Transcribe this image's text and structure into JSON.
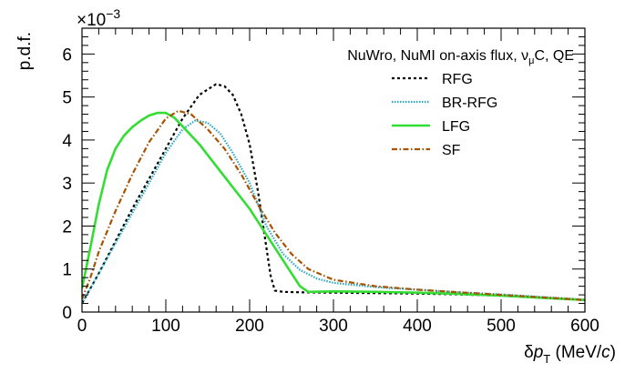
{
  "chart_data": {
    "type": "line",
    "title": "",
    "annotation": {
      "text": "NuWro, NuMI on-axis flux, ",
      "nu": "ν",
      "sub": "μ",
      "tail": "C, QE"
    },
    "xlabel": {
      "delta": "δ",
      "p": "p",
      "sub": "T",
      "unit_pre": " (MeV/",
      "unit_c": "c",
      "unit_post": ")"
    },
    "ylabel": "p.d.f.",
    "y_multiplier": {
      "base": "×10",
      "exp": "−3"
    },
    "xlim": [
      0,
      600
    ],
    "ylim": [
      0,
      6.6
    ],
    "x_ticks": [
      0,
      100,
      200,
      300,
      400,
      500,
      600
    ],
    "y_ticks": [
      0,
      1,
      2,
      3,
      4,
      5,
      6
    ],
    "grid": false,
    "legend_position": "top-right",
    "series": [
      {
        "name": "RFG",
        "color": "#000000",
        "dash": "3 3",
        "points": [
          [
            0,
            0.2
          ],
          [
            20,
            0.9
          ],
          [
            40,
            1.65
          ],
          [
            60,
            2.4
          ],
          [
            80,
            3.1
          ],
          [
            100,
            3.8
          ],
          [
            120,
            4.5
          ],
          [
            140,
            5.05
          ],
          [
            160,
            5.3
          ],
          [
            170,
            5.25
          ],
          [
            180,
            5.05
          ],
          [
            190,
            4.6
          ],
          [
            200,
            3.9
          ],
          [
            210,
            2.8
          ],
          [
            220,
            1.5
          ],
          [
            225,
            0.85
          ],
          [
            230,
            0.5
          ],
          [
            240,
            0.47
          ],
          [
            260,
            0.46
          ],
          [
            300,
            0.45
          ],
          [
            350,
            0.44
          ],
          [
            400,
            0.43
          ],
          [
            450,
            0.41
          ],
          [
            500,
            0.38
          ],
          [
            550,
            0.33
          ],
          [
            600,
            0.28
          ]
        ]
      },
      {
        "name": "BR-RFG",
        "color": "#2aa8c2",
        "dash": "1.5 1.5",
        "points": [
          [
            0,
            0.2
          ],
          [
            20,
            0.9
          ],
          [
            40,
            1.6
          ],
          [
            60,
            2.3
          ],
          [
            80,
            3.0
          ],
          [
            100,
            3.7
          ],
          [
            120,
            4.25
          ],
          [
            135,
            4.45
          ],
          [
            150,
            4.4
          ],
          [
            165,
            4.15
          ],
          [
            180,
            3.7
          ],
          [
            200,
            3.0
          ],
          [
            220,
            2.0
          ],
          [
            240,
            1.35
          ],
          [
            260,
            0.98
          ],
          [
            280,
            0.78
          ],
          [
            300,
            0.68
          ],
          [
            350,
            0.58
          ],
          [
            400,
            0.52
          ],
          [
            450,
            0.46
          ],
          [
            500,
            0.41
          ],
          [
            550,
            0.35
          ],
          [
            600,
            0.29
          ]
        ]
      },
      {
        "name": "LFG",
        "color": "#33dd33",
        "dash": "",
        "points": [
          [
            0,
            0.55
          ],
          [
            10,
            1.5
          ],
          [
            20,
            2.5
          ],
          [
            30,
            3.3
          ],
          [
            40,
            3.8
          ],
          [
            50,
            4.1
          ],
          [
            60,
            4.3
          ],
          [
            70,
            4.45
          ],
          [
            80,
            4.57
          ],
          [
            90,
            4.63
          ],
          [
            100,
            4.63
          ],
          [
            110,
            4.52
          ],
          [
            120,
            4.32
          ],
          [
            140,
            3.9
          ],
          [
            160,
            3.4
          ],
          [
            180,
            2.9
          ],
          [
            200,
            2.4
          ],
          [
            220,
            1.8
          ],
          [
            240,
            1.2
          ],
          [
            260,
            0.6
          ],
          [
            270,
            0.47
          ],
          [
            300,
            0.48
          ],
          [
            350,
            0.47
          ],
          [
            400,
            0.45
          ],
          [
            450,
            0.42
          ],
          [
            500,
            0.38
          ],
          [
            550,
            0.33
          ],
          [
            600,
            0.28
          ]
        ]
      },
      {
        "name": "SF",
        "color": "#a85200",
        "dash": "6 2.5 1.5 2.5",
        "points": [
          [
            0,
            0.3
          ],
          [
            10,
            0.8
          ],
          [
            20,
            1.4
          ],
          [
            40,
            2.35
          ],
          [
            60,
            3.2
          ],
          [
            80,
            3.95
          ],
          [
            100,
            4.5
          ],
          [
            115,
            4.68
          ],
          [
            130,
            4.6
          ],
          [
            150,
            4.25
          ],
          [
            170,
            3.8
          ],
          [
            190,
            3.2
          ],
          [
            210,
            2.5
          ],
          [
            230,
            1.85
          ],
          [
            250,
            1.35
          ],
          [
            270,
            1.0
          ],
          [
            300,
            0.75
          ],
          [
            350,
            0.6
          ],
          [
            400,
            0.52
          ],
          [
            450,
            0.46
          ],
          [
            500,
            0.4
          ],
          [
            550,
            0.34
          ],
          [
            600,
            0.28
          ]
        ]
      }
    ]
  }
}
